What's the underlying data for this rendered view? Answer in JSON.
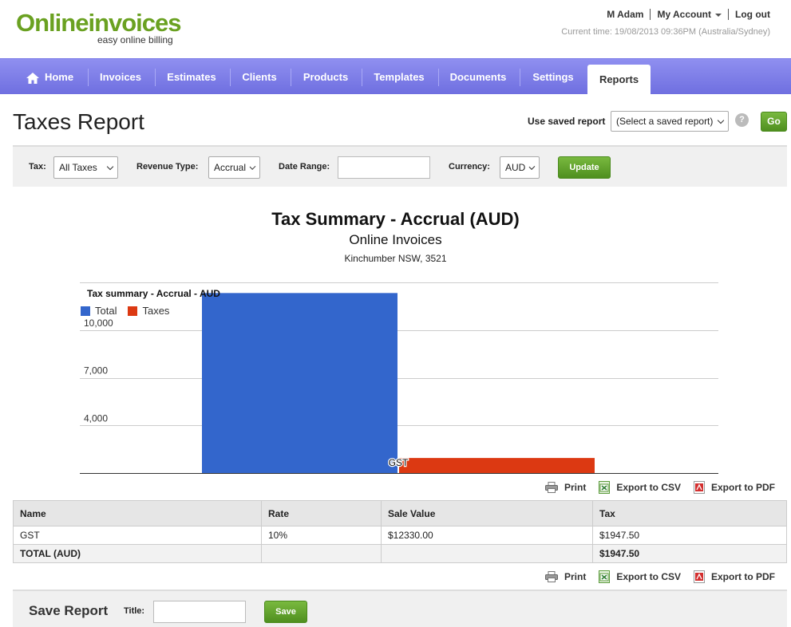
{
  "header": {
    "logo_online": "Online",
    "logo_invoices": "invoices",
    "logo_tagline": "easy online billing",
    "user_name": "M Adam",
    "my_account": "My Account",
    "logout": "Log out",
    "current_time": "Current time: 19/08/2013 09:36PM (Australia/Sydney)"
  },
  "nav": {
    "items": [
      "Home",
      "Invoices",
      "Estimates",
      "Clients",
      "Products",
      "Templates",
      "Documents",
      "Settings",
      "Reports"
    ],
    "active": "Reports"
  },
  "page": {
    "title": "Taxes Report",
    "saved_report_label": "Use saved report",
    "saved_report_value": "(Select a saved report)",
    "go_label": "Go",
    "help": "?"
  },
  "filters": {
    "tax_label": "Tax:",
    "tax_value": "All Taxes",
    "revenue_label": "Revenue Type:",
    "revenue_value": "Accrual",
    "date_label": "Date Range:",
    "date_value": "",
    "currency_label": "Currency:",
    "currency_value": "AUD",
    "update_label": "Update"
  },
  "report": {
    "title": "Tax Summary - Accrual (AUD)",
    "company": "Online Invoices",
    "address": "Kinchumber NSW, 3521"
  },
  "chart_data": {
    "type": "bar",
    "title": "Tax summary - Accrual - AUD",
    "categories": [
      "GST"
    ],
    "series": [
      {
        "name": "Total",
        "values": [
          12330.0
        ],
        "color": "#3366cc"
      },
      {
        "name": "Taxes",
        "values": [
          1947.5
        ],
        "color": "#dc3912"
      }
    ],
    "yticks": [
      "10,000",
      "7,000",
      "4,000"
    ],
    "ylim": [
      1000,
      13000
    ],
    "grid": true,
    "legend": "top-left"
  },
  "export": {
    "print": "Print",
    "csv": "Export to CSV",
    "pdf": "Export to PDF"
  },
  "table": {
    "headers": [
      "Name",
      "Rate",
      "Sale Value",
      "Tax"
    ],
    "rows": [
      [
        "GST",
        "10%",
        "$12330.00",
        "$1947.50"
      ]
    ],
    "total": [
      "TOTAL (AUD)",
      "",
      "",
      "$1947.50"
    ]
  },
  "save_report": {
    "heading": "Save Report",
    "title_label": "Title:",
    "title_value": "",
    "save_label": "Save"
  },
  "colors": {
    "nav": "#7b7be6",
    "green_button": "#5c9e28",
    "brand_green": "#6aa121"
  }
}
